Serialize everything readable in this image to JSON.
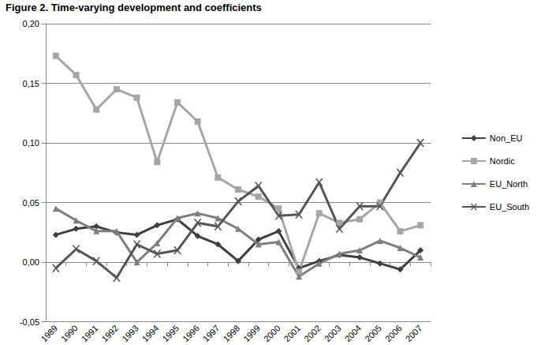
{
  "chart_data": {
    "type": "line",
    "title": "Figure 2. Time-varying development and coefficients",
    "categories": [
      "1989",
      "1990",
      "1991",
      "1992",
      "1993",
      "1994",
      "1995",
      "1996",
      "1997",
      "1998",
      "1999",
      "2000",
      "2001",
      "2002",
      "2003",
      "2004",
      "2005",
      "2006",
      "2007"
    ],
    "series": [
      {
        "name": "Non_EU",
        "color": "#3f3f3f",
        "marker": "diamond",
        "values": [
          0.023,
          0.028,
          0.03,
          0.025,
          0.023,
          0.031,
          0.036,
          0.022,
          0.015,
          0.001,
          0.019,
          0.026,
          -0.005,
          0.001,
          0.006,
          0.004,
          -0.001,
          -0.006,
          0.01
        ]
      },
      {
        "name": "Nordic",
        "color": "#a6a6a6",
        "marker": "square",
        "values": [
          0.173,
          0.157,
          0.128,
          0.145,
          0.138,
          0.084,
          0.134,
          0.118,
          0.071,
          0.061,
          0.055,
          0.045,
          -0.008,
          0.041,
          0.033,
          0.036,
          0.05,
          0.026,
          0.031
        ]
      },
      {
        "name": "EU_North",
        "color": "#7f7f7f",
        "marker": "triangle",
        "values": [
          0.045,
          0.035,
          0.026,
          0.026,
          0.0,
          0.016,
          0.037,
          0.041,
          0.037,
          0.028,
          0.015,
          0.017,
          -0.012,
          -0.001,
          0.007,
          0.01,
          0.018,
          0.012,
          0.004
        ]
      },
      {
        "name": "EU_South",
        "color": "#555555",
        "marker": "x",
        "values": [
          -0.005,
          0.011,
          0.001,
          -0.013,
          0.015,
          0.007,
          0.01,
          0.033,
          0.03,
          0.051,
          0.064,
          0.039,
          0.04,
          0.067,
          0.028,
          0.047,
          0.047,
          0.075,
          0.1
        ]
      }
    ],
    "ylim": [
      -0.05,
      0.2
    ],
    "yticks": [
      {
        "value": -0.05,
        "label": "-0,05"
      },
      {
        "value": 0,
        "label": "0,00"
      },
      {
        "value": 0.05,
        "label": "0,05"
      },
      {
        "value": 0.1,
        "label": "0,10"
      },
      {
        "value": 0.15,
        "label": "0,15"
      },
      {
        "value": 0.2,
        "label": "0,20"
      }
    ],
    "grid": true,
    "legend": "right"
  }
}
